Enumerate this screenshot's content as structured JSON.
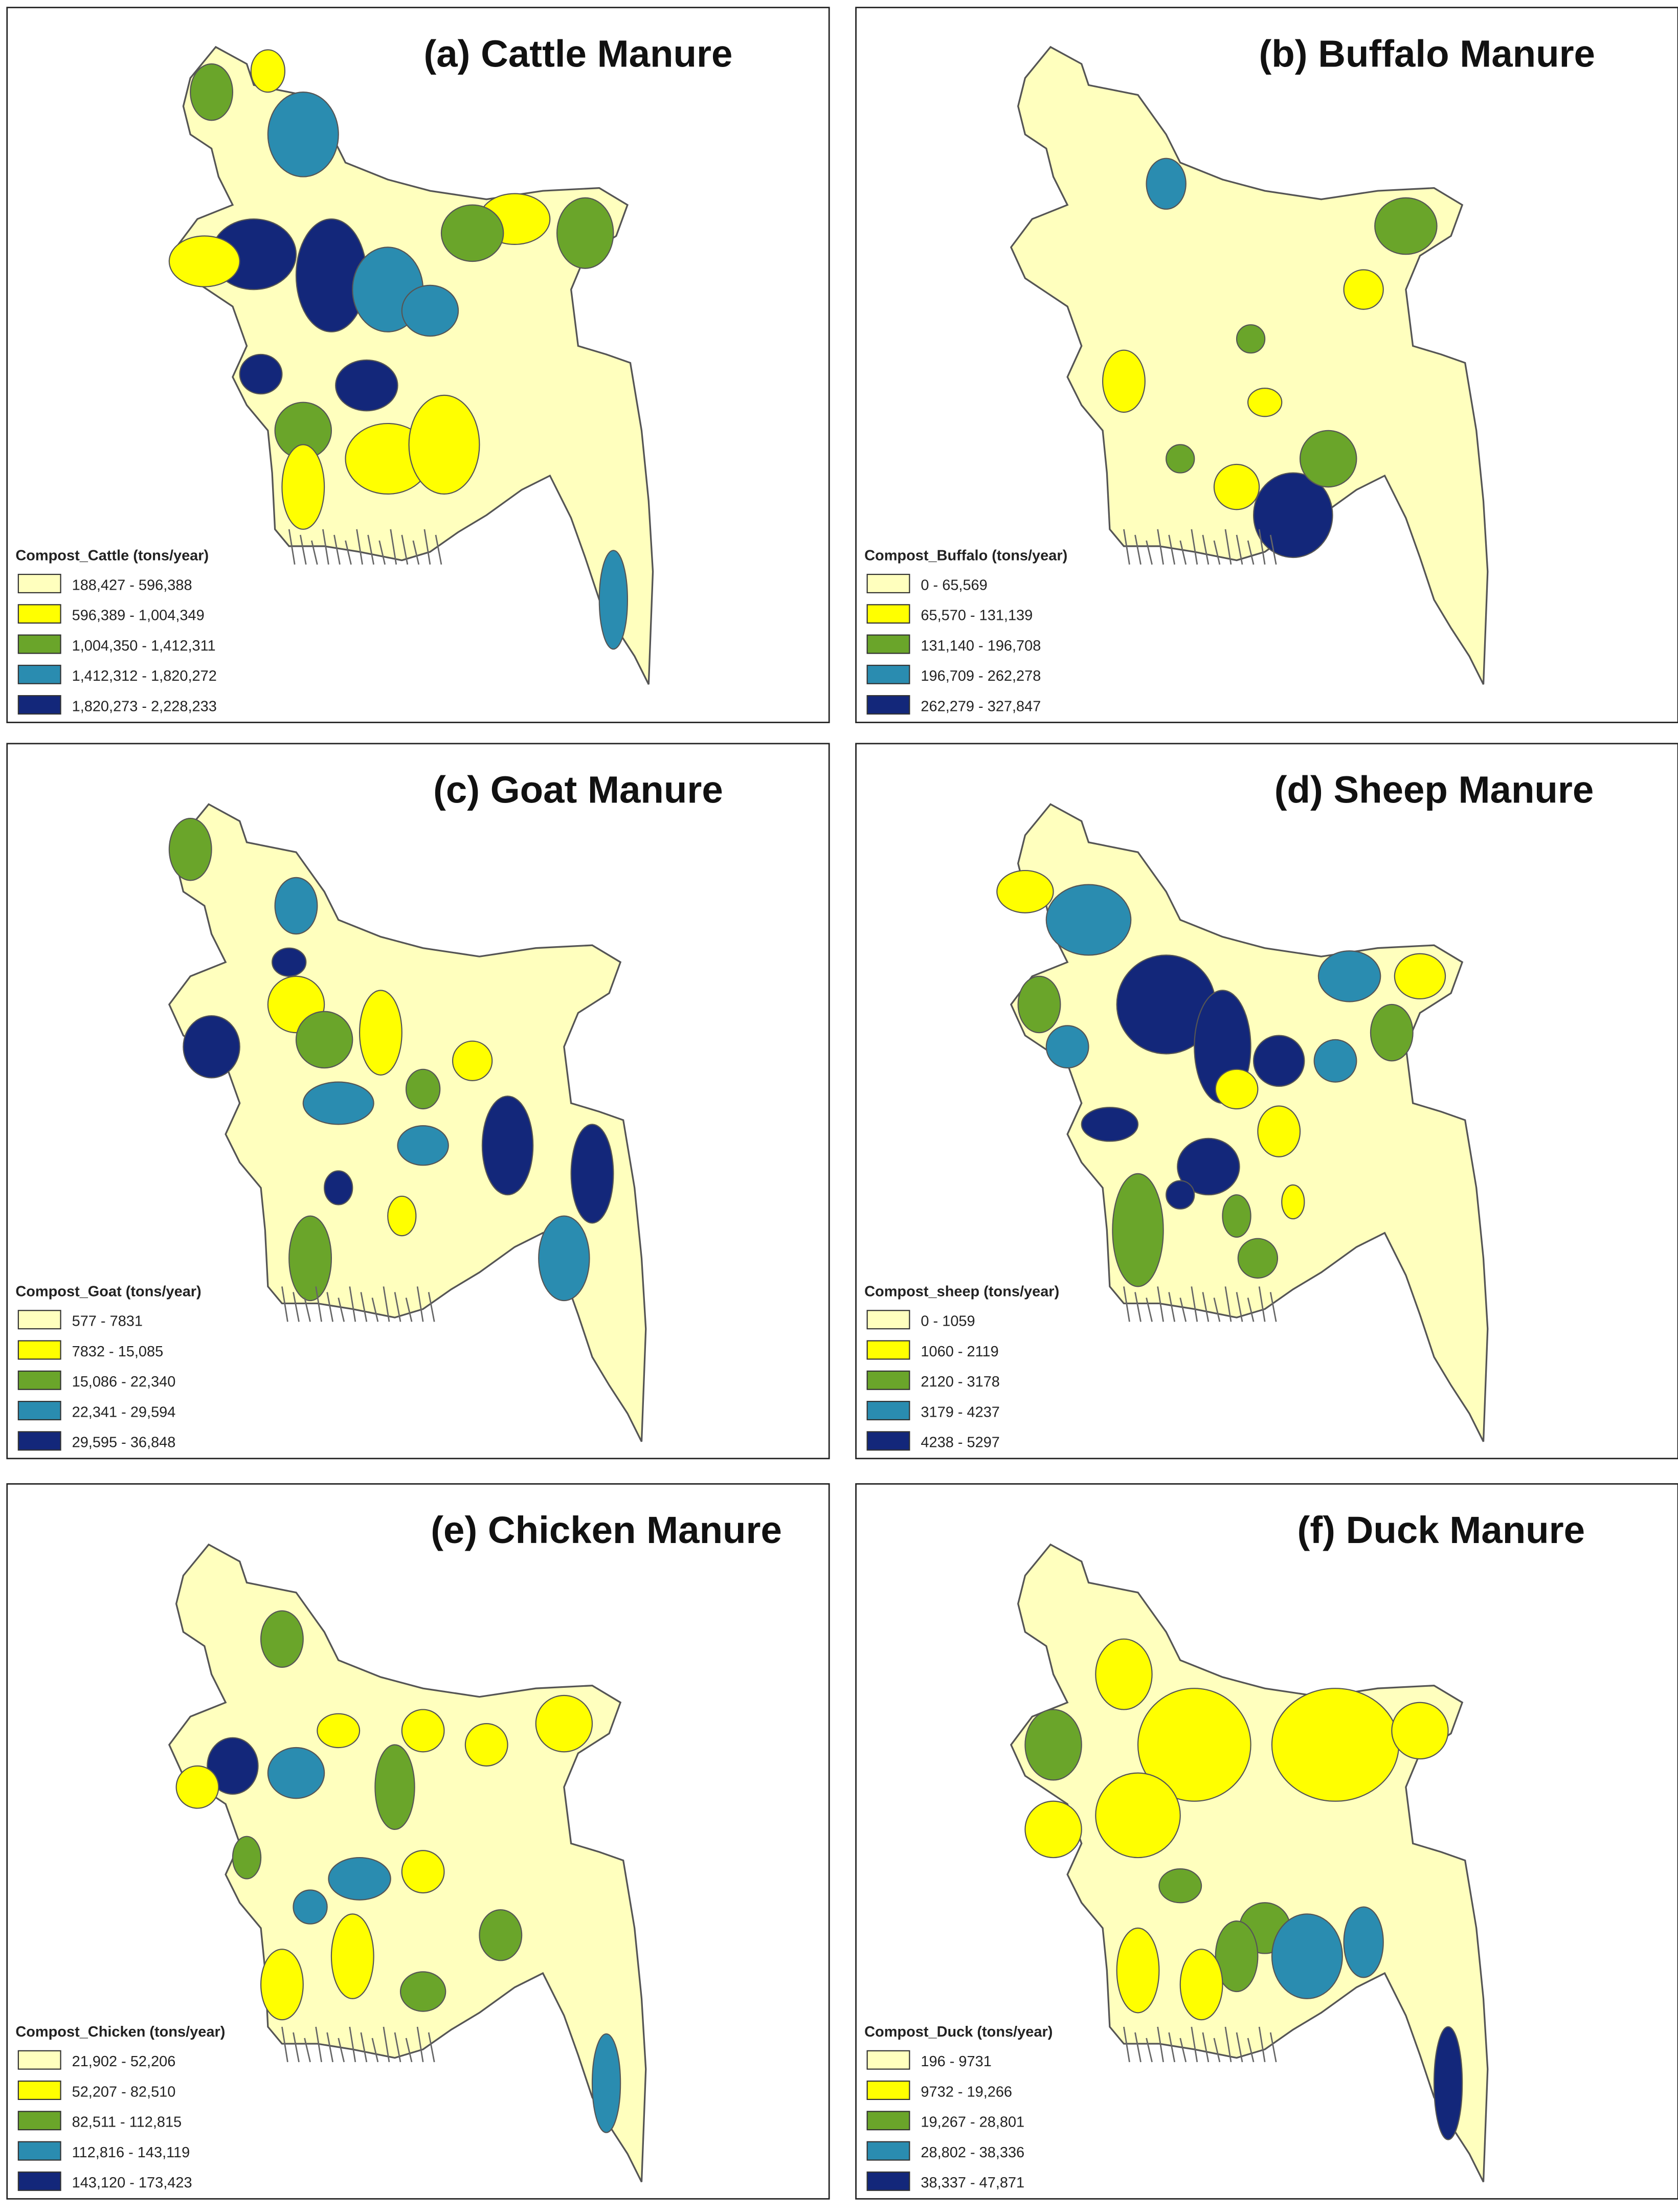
{
  "class_colors": [
    "#ffffbe",
    "#ffff00",
    "#6aa52a",
    "#2a8cb0",
    "#13277a"
  ],
  "panels": [
    {
      "title": "(a) Cattle Manure",
      "legend_title": "Compost_Cattle (tons/year)",
      "legend": [
        "188,427 - 596,388",
        "596,389 - 1,004,349",
        "1,004,350 - 1,412,311",
        "1,412,312 - 1,820,272",
        "1,820,273 - 2,228,233"
      ]
    },
    {
      "title": "(b) Buffalo Manure",
      "legend_title": "Compost_Buffalo (tons/year)",
      "legend": [
        "0 - 65,569",
        "65,570 - 131,139",
        "131,140 - 196,708",
        "196,709 - 262,278",
        "262,279 - 327,847"
      ]
    },
    {
      "title": "(c) Goat Manure",
      "legend_title": "Compost_Goat (tons/year)",
      "legend": [
        "577 - 7831",
        "7832 - 15,085",
        "15,086 - 22,340",
        "22,341 - 29,594",
        "29,595 - 36,848"
      ]
    },
    {
      "title": "(d) Sheep Manure",
      "legend_title": "Compost_sheep (tons/year)",
      "legend": [
        "0 - 1059",
        "1060 - 2119",
        "2120 - 3178",
        "3179 - 4237",
        "4238 - 5297"
      ]
    },
    {
      "title": "(e) Chicken Manure",
      "legend_title": "Compost_Chicken (tons/year)",
      "legend": [
        "21,902 - 52,206",
        "52,207 - 82,510",
        "82,511 - 112,815",
        "112,816 - 143,119",
        "143,120 - 173,423"
      ]
    },
    {
      "title": "(f) Duck Manure",
      "legend_title": "Compost_Duck (tons/year)",
      "legend": [
        "196 - 9731",
        "9732 - 19,266",
        "19,267 - 28,801",
        "28,802 - 38,336",
        "38,337 - 47,871"
      ]
    }
  ]
}
